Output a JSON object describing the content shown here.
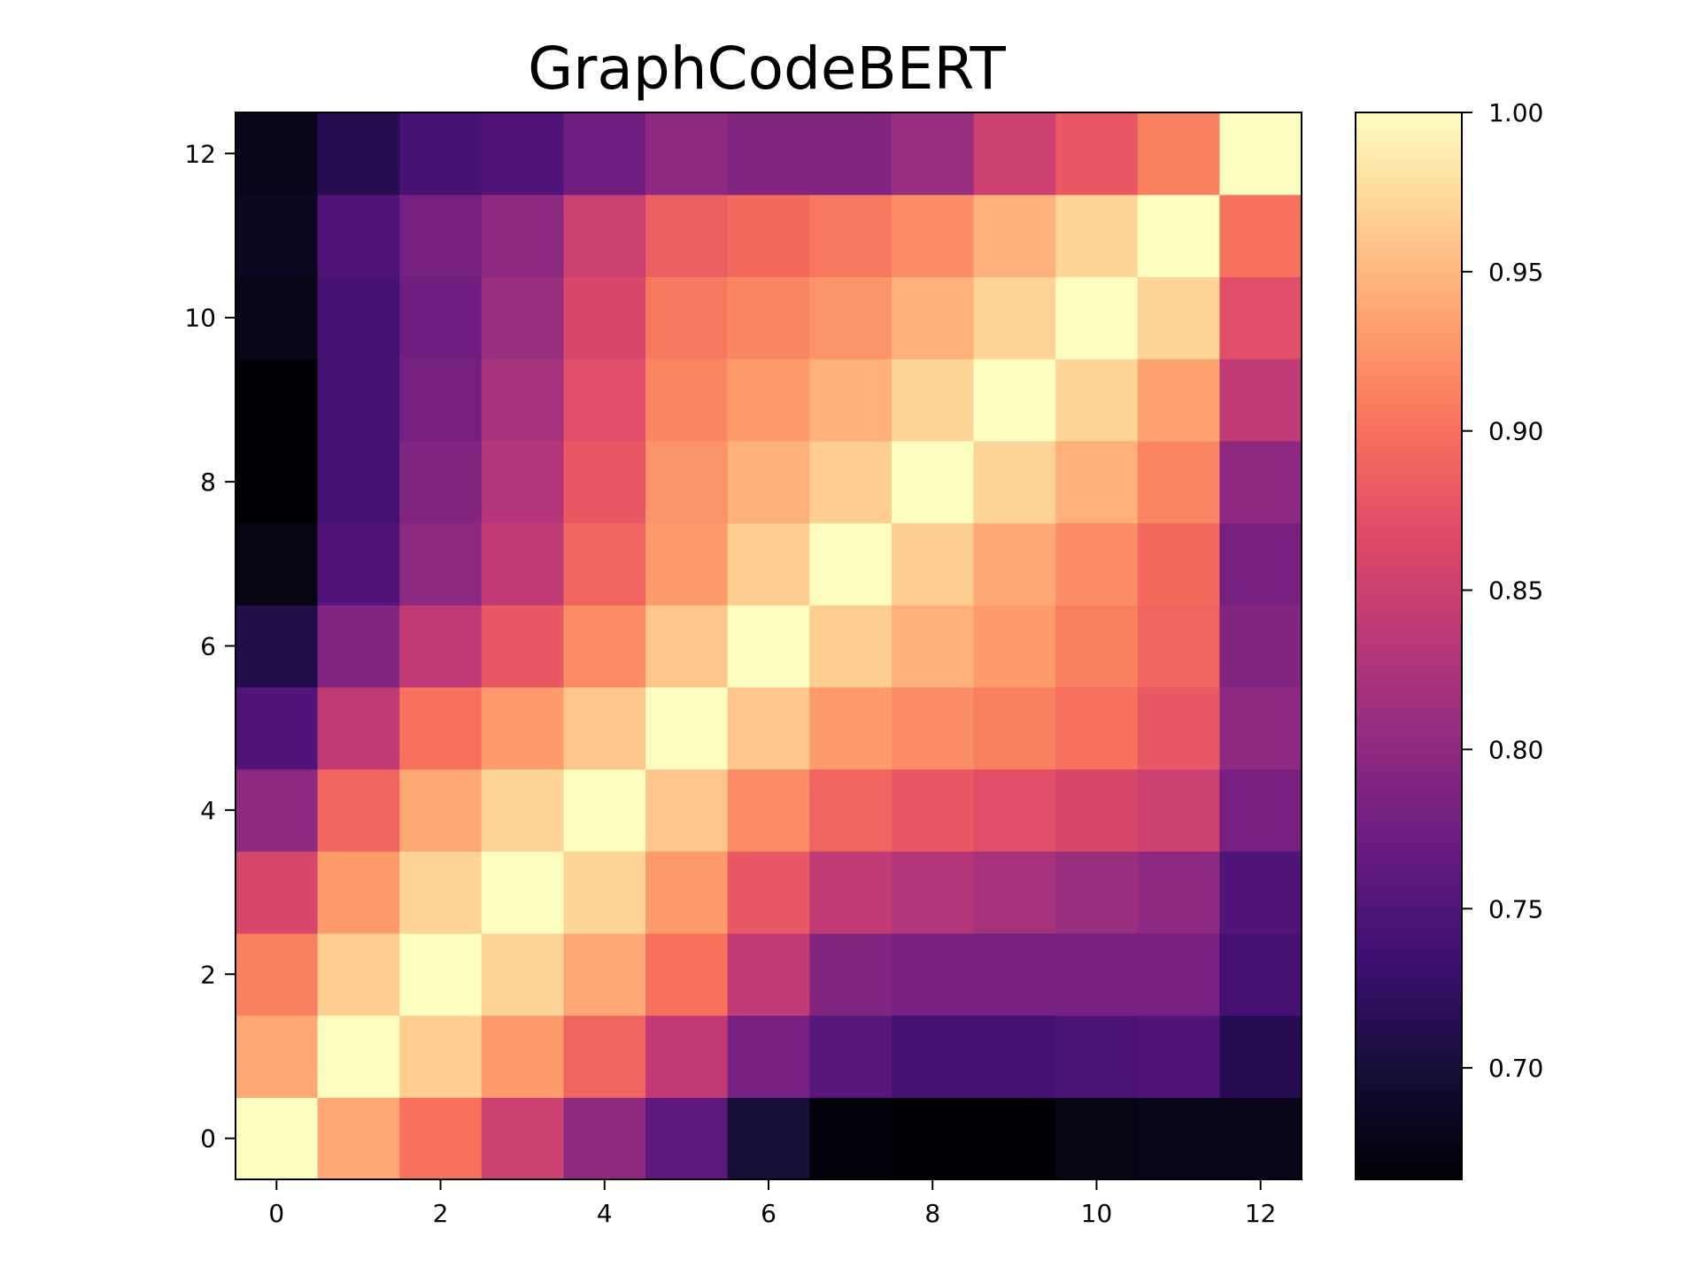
{
  "chart_data": {
    "type": "heatmap",
    "title": "GraphCodeBERT",
    "xlabel": "",
    "ylabel": "",
    "colormap": "magma",
    "x": [
      0,
      1,
      2,
      3,
      4,
      5,
      6,
      7,
      8,
      9,
      10,
      11,
      12
    ],
    "y": [
      0,
      1,
      2,
      3,
      4,
      5,
      6,
      7,
      8,
      9,
      10,
      11,
      12
    ],
    "x_ticks": [
      "0",
      "2",
      "4",
      "6",
      "8",
      "10",
      "12"
    ],
    "y_ticks": [
      "0",
      "2",
      "4",
      "6",
      "8",
      "10",
      "12"
    ],
    "xlim": [
      -0.5,
      12.5
    ],
    "ylim": [
      -0.5,
      12.5
    ],
    "colorbar": {
      "range": [
        0.665,
        1.0
      ],
      "ticks": [
        0.7,
        0.75,
        0.8,
        0.85,
        0.9,
        0.95,
        1.0
      ],
      "tick_labels": [
        "0.70",
        "0.75",
        "0.80",
        "0.85",
        "0.90",
        "0.95",
        "1.00"
      ]
    },
    "values": [
      [
        1.0,
        0.94,
        0.9,
        0.85,
        0.8,
        0.76,
        0.7,
        0.67,
        0.665,
        0.665,
        0.675,
        0.68,
        0.68
      ],
      [
        0.94,
        1.0,
        0.965,
        0.93,
        0.89,
        0.84,
        0.78,
        0.755,
        0.74,
        0.74,
        0.745,
        0.75,
        0.715
      ],
      [
        0.91,
        0.965,
        1.0,
        0.97,
        0.94,
        0.9,
        0.84,
        0.79,
        0.78,
        0.78,
        0.78,
        0.78,
        0.74
      ],
      [
        0.86,
        0.93,
        0.97,
        1.0,
        0.97,
        0.93,
        0.88,
        0.84,
        0.83,
        0.82,
        0.81,
        0.8,
        0.75
      ],
      [
        0.8,
        0.89,
        0.94,
        0.97,
        1.0,
        0.96,
        0.92,
        0.89,
        0.88,
        0.87,
        0.86,
        0.85,
        0.78
      ],
      [
        0.75,
        0.84,
        0.9,
        0.93,
        0.96,
        1.0,
        0.96,
        0.93,
        0.92,
        0.91,
        0.9,
        0.88,
        0.8
      ],
      [
        0.71,
        0.79,
        0.84,
        0.88,
        0.92,
        0.96,
        1.0,
        0.965,
        0.945,
        0.93,
        0.91,
        0.89,
        0.79
      ],
      [
        0.675,
        0.75,
        0.8,
        0.84,
        0.89,
        0.93,
        0.965,
        1.0,
        0.965,
        0.94,
        0.92,
        0.895,
        0.78
      ],
      [
        0.665,
        0.74,
        0.79,
        0.83,
        0.88,
        0.925,
        0.945,
        0.965,
        1.0,
        0.97,
        0.945,
        0.915,
        0.8
      ],
      [
        0.665,
        0.74,
        0.78,
        0.82,
        0.87,
        0.915,
        0.93,
        0.945,
        0.97,
        1.0,
        0.97,
        0.935,
        0.84
      ],
      [
        0.68,
        0.74,
        0.775,
        0.81,
        0.86,
        0.905,
        0.915,
        0.925,
        0.945,
        0.97,
        1.0,
        0.97,
        0.87
      ],
      [
        0.685,
        0.75,
        0.78,
        0.8,
        0.85,
        0.885,
        0.895,
        0.905,
        0.92,
        0.945,
        0.97,
        1.0,
        0.9
      ],
      [
        0.682,
        0.715,
        0.74,
        0.75,
        0.775,
        0.8,
        0.79,
        0.79,
        0.81,
        0.85,
        0.88,
        0.91,
        1.0
      ]
    ]
  }
}
